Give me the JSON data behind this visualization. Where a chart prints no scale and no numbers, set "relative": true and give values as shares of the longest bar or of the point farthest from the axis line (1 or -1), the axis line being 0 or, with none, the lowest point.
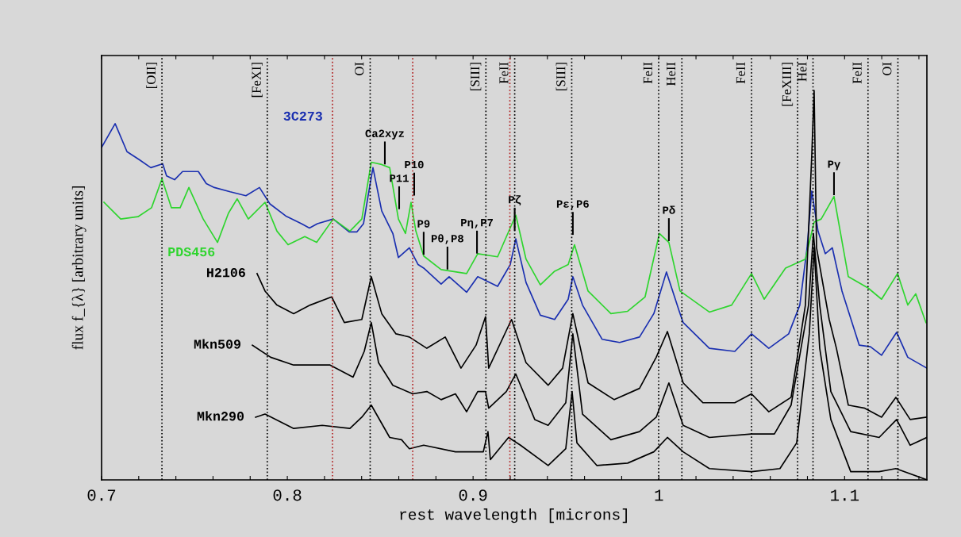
{
  "chart_data": {
    "type": "line",
    "relative": true,
    "xlabel": "rest wavelength [microns]",
    "ylabel": "flux f_{λ} [arbitrary units]",
    "xlim": [
      0.7,
      1.1443
    ],
    "xticks": [
      0.7,
      {
        "value": 0.72,
        "label": null
      },
      {
        "value": 0.74,
        "label": null
      },
      {
        "value": 0.76,
        "label": null
      },
      {
        "value": 0.78,
        "label": null
      },
      0.8,
      {
        "value": 0.82,
        "label": null
      },
      {
        "value": 0.84,
        "label": null
      },
      {
        "value": 0.86,
        "label": null
      },
      {
        "value": 0.88,
        "label": null
      },
      0.9,
      {
        "value": 0.92,
        "label": null
      },
      {
        "value": 0.94,
        "label": null
      },
      {
        "value": 0.96,
        "label": null
      },
      {
        "value": 0.98,
        "label": null
      },
      1,
      {
        "value": 1.02,
        "label": null
      },
      {
        "value": 1.04,
        "label": null
      },
      {
        "value": 1.06,
        "label": null
      },
      {
        "value": 1.08,
        "label": null
      },
      1.1,
      {
        "value": 1.12,
        "label": null
      },
      {
        "value": 1.14,
        "label": null
      }
    ],
    "tick_labels": "x",
    "series": [
      {
        "name": "3C273",
        "color": "#1a2fb0",
        "x": [
          0.7,
          0.7073,
          0.7137,
          0.7201,
          0.7265,
          0.7329,
          0.735,
          0.7393,
          0.7436,
          0.7521,
          0.7564,
          0.7607,
          0.7692,
          0.7777,
          0.785,
          0.7906,
          0.7991,
          0.8076,
          0.8119,
          0.8162,
          0.8247,
          0.8333,
          0.8375,
          0.841,
          0.8435,
          0.8461,
          0.8508,
          0.8568,
          0.8598,
          0.8657,
          0.8704,
          0.8734,
          0.8828,
          0.8871,
          0.8965,
          0.9025,
          0.9132,
          0.92,
          0.923,
          0.9285,
          0.9362,
          0.9439,
          0.9512,
          0.9537,
          0.9589,
          0.9695,
          0.9789,
          0.9896,
          0.9973,
          1.0041,
          1.011,
          1.0131,
          1.0272,
          1.0409,
          1.0499,
          1.0592,
          1.0699,
          1.0759,
          1.0798,
          1.0823,
          1.0857,
          1.0896,
          1.0934,
          1.0986,
          1.1079,
          1.1139,
          1.1199,
          1.128,
          1.134,
          1.1443
        ],
        "values": [
          0.854,
          0.915,
          0.843,
          0.823,
          0.802,
          0.812,
          0.781,
          0.771,
          0.792,
          0.792,
          0.761,
          0.751,
          0.74,
          0.73,
          0.751,
          0.709,
          0.678,
          0.658,
          0.647,
          0.658,
          0.67,
          0.637,
          0.637,
          0.658,
          0.73,
          0.802,
          0.691,
          0.633,
          0.571,
          0.596,
          0.553,
          0.544,
          0.503,
          0.522,
          0.482,
          0.522,
          0.497,
          0.553,
          0.619,
          0.507,
          0.423,
          0.412,
          0.464,
          0.522,
          0.449,
          0.361,
          0.353,
          0.367,
          0.427,
          0.534,
          0.433,
          0.404,
          0.338,
          0.33,
          0.375,
          0.338,
          0.375,
          0.449,
          0.596,
          0.742,
          0.639,
          0.581,
          0.596,
          0.485,
          0.346,
          0.342,
          0.32,
          0.379,
          0.315,
          0.287
        ]
      },
      {
        "name": "PDS456",
        "color": "#2ed52e",
        "x": [
          0.7013,
          0.7103,
          0.7196,
          0.7269,
          0.7325,
          0.7376,
          0.7423,
          0.747,
          0.7547,
          0.7624,
          0.7683,
          0.773,
          0.779,
          0.788,
          0.7944,
          0.8004,
          0.8094,
          0.8158,
          0.8247,
          0.8337,
          0.8401,
          0.8452,
          0.8508,
          0.8551,
          0.8598,
          0.8636,
          0.8666,
          0.8692,
          0.8734,
          0.8828,
          0.8965,
          0.9025,
          0.9132,
          0.923,
          0.9285,
          0.9362,
          0.9439,
          0.9512,
          0.9546,
          0.9619,
          0.9742,
          0.9832,
          0.9926,
          1.0003,
          1.0054,
          1.0114,
          1.0272,
          1.0392,
          1.0499,
          1.0567,
          1.0682,
          1.0789,
          1.0836,
          1.0874,
          1.0943,
          1.102,
          1.1126,
          1.1199,
          1.1285,
          1.134,
          1.1383,
          1.1438
        ],
        "values": [
          0.713,
          0.67,
          0.676,
          0.699,
          0.773,
          0.699,
          0.699,
          0.751,
          0.67,
          0.61,
          0.685,
          0.722,
          0.67,
          0.713,
          0.639,
          0.604,
          0.625,
          0.61,
          0.67,
          0.639,
          0.67,
          0.816,
          0.81,
          0.802,
          0.67,
          0.633,
          0.713,
          0.639,
          0.575,
          0.54,
          0.53,
          0.581,
          0.573,
          0.68,
          0.567,
          0.501,
          0.536,
          0.553,
          0.604,
          0.485,
          0.427,
          0.433,
          0.47,
          0.633,
          0.61,
          0.485,
          0.431,
          0.449,
          0.53,
          0.464,
          0.544,
          0.567,
          0.662,
          0.67,
          0.728,
          0.522,
          0.493,
          0.464,
          0.53,
          0.449,
          0.478,
          0.404
        ]
      },
      {
        "name": "H2106",
        "color": "#000000",
        "x": [
          0.7837,
          0.788,
          0.7944,
          0.8034,
          0.8123,
          0.8239,
          0.8307,
          0.8401,
          0.8452,
          0.8508,
          0.8585,
          0.8657,
          0.8751,
          0.885,
          0.8935,
          0.9016,
          0.9067,
          0.9084,
          0.9207,
          0.9285,
          0.9404,
          0.9482,
          0.9537,
          0.9619,
          0.976,
          0.9896,
          0.9986,
          1.0046,
          1.0131,
          1.0238,
          1.0409,
          1.0499,
          1.0592,
          1.0712,
          1.0789,
          1.0823,
          1.0836,
          1.0849,
          1.0917,
          1.0956,
          1.102,
          1.1109,
          1.1199,
          1.1276,
          1.1353,
          1.1443
        ],
        "values": [
          0.53,
          0.485,
          0.449,
          0.427,
          0.449,
          0.47,
          0.404,
          0.412,
          0.522,
          0.427,
          0.375,
          0.367,
          0.338,
          0.367,
          0.287,
          0.346,
          0.419,
          0.287,
          0.412,
          0.301,
          0.243,
          0.287,
          0.427,
          0.249,
          0.206,
          0.235,
          0.315,
          0.381,
          0.249,
          0.198,
          0.198,
          0.221,
          0.175,
          0.212,
          0.449,
          0.831,
          1.0,
          0.596,
          0.412,
          0.338,
          0.192,
          0.184,
          0.161,
          0.212,
          0.155,
          0.161
        ]
      },
      {
        "name": "Mkn509",
        "color": "#000000",
        "x": [
          0.7812,
          0.791,
          0.8034,
          0.8158,
          0.823,
          0.8354,
          0.8414,
          0.8452,
          0.8491,
          0.8568,
          0.8675,
          0.8751,
          0.8828,
          0.8905,
          0.8965,
          0.9025,
          0.9067,
          0.9084,
          0.9179,
          0.923,
          0.9332,
          0.9404,
          0.9499,
          0.9537,
          0.9589,
          0.9742,
          0.9896,
          0.9986,
          1.0054,
          1.0131,
          1.0272,
          1.0499,
          1.0622,
          1.0712,
          1.0806,
          1.0832,
          1.0866,
          1.0926,
          1.1033,
          1.1186,
          1.128,
          1.1353,
          1.1443
        ],
        "values": [
          0.346,
          0.315,
          0.295,
          0.295,
          0.295,
          0.264,
          0.33,
          0.404,
          0.301,
          0.243,
          0.221,
          0.227,
          0.206,
          0.221,
          0.175,
          0.227,
          0.227,
          0.184,
          0.227,
          0.272,
          0.155,
          0.14,
          0.198,
          0.375,
          0.169,
          0.103,
          0.124,
          0.161,
          0.249,
          0.14,
          0.109,
          0.118,
          0.118,
          0.192,
          0.449,
          0.633,
          0.449,
          0.227,
          0.124,
          0.109,
          0.155,
          0.089,
          0.109
        ]
      },
      {
        "name": "Mkn290",
        "color": "#000000",
        "x": [
          0.7829,
          0.788,
          0.8034,
          0.8188,
          0.8337,
          0.8401,
          0.8452,
          0.8551,
          0.8615,
          0.8657,
          0.8734,
          0.8905,
          0.9055,
          0.908,
          0.9093,
          0.9191,
          0.9255,
          0.9404,
          0.9499,
          0.9533,
          0.9559,
          0.9666,
          0.9832,
          0.9973,
          1.0046,
          1.0131,
          1.0272,
          1.0499,
          1.0652,
          1.0742,
          1.081,
          1.0836,
          1.0866,
          1.0926,
          1.1033,
          1.1186,
          1.1276,
          1.1443
        ],
        "values": [
          0.161,
          0.169,
          0.132,
          0.14,
          0.132,
          0.161,
          0.192,
          0.109,
          0.103,
          0.08,
          0.089,
          0.072,
          0.072,
          0.124,
          0.052,
          0.109,
          0.089,
          0.037,
          0.08,
          0.227,
          0.095,
          0.037,
          0.043,
          0.072,
          0.109,
          0.072,
          0.029,
          0.021,
          0.029,
          0.095,
          0.375,
          0.596,
          0.338,
          0.155,
          0.021,
          0.021,
          0.029,
          0.0
        ]
      }
    ],
    "ref_lines": [
      {
        "axis": "x",
        "value": 0.7325,
        "label": "[OII]",
        "color": "#000000",
        "line_style": "dotted"
      },
      {
        "axis": "x",
        "value": 0.7892,
        "label": "[FeXI]",
        "color": "#000000",
        "line_style": "dotted"
      },
      {
        "axis": "x",
        "value": 0.8446,
        "label": "OI",
        "color": "#000000",
        "line_style": "dotted"
      },
      {
        "axis": "x",
        "value": 0.9069,
        "label": "[SIII]",
        "color": "#000000",
        "line_style": "dotted"
      },
      {
        "axis": "x",
        "value": 0.9224,
        "label": "FeII",
        "color": "#000000",
        "line_style": "dotted"
      },
      {
        "axis": "x",
        "value": 0.9531,
        "label": "[SIII]",
        "color": "#000000",
        "line_style": "dotted"
      },
      {
        "axis": "x",
        "value": 0.9999,
        "label": "FeII",
        "color": "#000000",
        "line_style": "dotted"
      },
      {
        "axis": "x",
        "value": 1.0124,
        "label": "HeII",
        "color": "#000000",
        "line_style": "dotted"
      },
      {
        "axis": "x",
        "value": 1.0499,
        "label": "FeII",
        "color": "#000000",
        "line_style": "dotted"
      },
      {
        "axis": "x",
        "value": 1.0747,
        "label": "[FeXIII]",
        "color": "#000000",
        "line_style": "dotted"
      },
      {
        "axis": "x",
        "value": 1.083,
        "label": "HeI",
        "color": "#000000",
        "line_style": "dotted"
      },
      {
        "axis": "x",
        "value": 1.1126,
        "label": "FeII",
        "color": "#000000",
        "line_style": "dotted"
      },
      {
        "axis": "x",
        "value": 1.1287,
        "label": "OI",
        "color": "#000000",
        "line_style": "dotted"
      },
      {
        "axis": "x",
        "value": 0.8243,
        "color": "#b22222",
        "line_style": "dotted"
      },
      {
        "axis": "x",
        "value": 0.8675,
        "color": "#b22222",
        "line_style": "dotted"
      },
      {
        "axis": "x",
        "value": 0.9198,
        "color": "#b22222",
        "line_style": "dotted"
      }
    ],
    "annotations": [
      {
        "text": "Ca2xyz",
        "x": 0.8525,
        "y": 0.807
      },
      {
        "text": "P10",
        "x": 0.8683,
        "y": 0.727
      },
      {
        "text": "P11",
        "x": 0.8602,
        "y": 0.692
      },
      {
        "text": "P9",
        "x": 0.8734,
        "y": 0.575
      },
      {
        "text": "Pθ,P8",
        "x": 0.8862,
        "y": 0.537
      },
      {
        "text": "Pη,P7",
        "x": 0.9021,
        "y": 0.578
      },
      {
        "text": "Pζ",
        "x": 0.9224,
        "y": 0.637
      },
      {
        "text": "Pε,P6",
        "x": 0.9537,
        "y": 0.626
      },
      {
        "text": "Pδ",
        "x": 1.0054,
        "y": 0.61
      },
      {
        "text": "Pγ",
        "x": 1.0943,
        "y": 0.728
      }
    ]
  }
}
